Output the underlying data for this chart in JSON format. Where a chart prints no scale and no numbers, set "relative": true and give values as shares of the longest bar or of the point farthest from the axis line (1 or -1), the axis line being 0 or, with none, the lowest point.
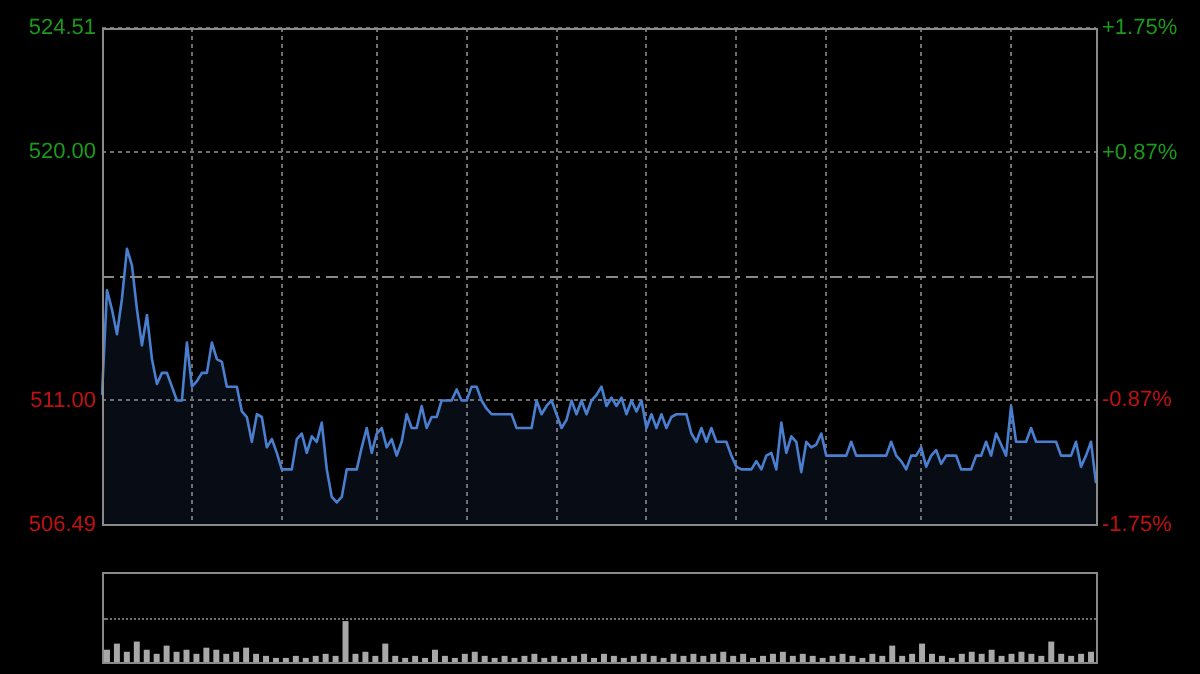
{
  "chart_data": [
    {
      "type": "area",
      "color": "#4a7fd0",
      "categories": [
        null,
        null,
        null,
        null,
        null,
        null,
        null,
        null,
        null,
        null,
        null,
        null,
        null,
        null,
        null,
        null,
        null,
        null,
        null,
        null,
        null,
        null,
        null,
        null,
        null,
        null,
        null,
        null,
        null,
        null,
        null,
        null,
        null,
        null,
        null,
        null,
        null,
        null,
        null,
        null,
        null,
        null,
        null,
        null,
        null,
        null,
        null,
        null,
        null,
        null,
        null,
        null,
        null,
        null,
        null,
        null,
        null,
        null,
        null,
        null,
        null,
        null,
        null,
        null,
        null,
        null,
        null,
        null,
        null,
        null,
        null,
        null,
        null,
        null,
        null,
        null,
        null,
        null,
        null,
        null,
        null,
        null,
        null,
        null,
        null,
        null,
        null,
        null,
        null,
        null,
        null,
        null,
        null,
        null,
        null,
        null,
        null,
        null,
        null,
        null,
        null,
        null,
        null,
        null,
        null,
        null,
        null,
        null,
        null,
        null,
        null,
        null,
        null,
        null,
        null,
        null,
        null,
        null,
        null,
        null,
        null,
        null,
        null,
        null,
        null,
        null,
        null,
        null,
        null,
        null,
        null,
        null,
        null,
        null,
        null,
        null,
        null,
        null,
        null,
        null,
        null,
        null,
        null,
        null,
        null,
        null,
        null,
        null,
        null,
        null,
        null,
        null,
        null,
        null,
        null,
        null,
        null,
        null,
        null,
        null,
        null,
        null,
        null,
        null,
        null,
        null,
        null,
        null,
        null,
        null,
        null,
        null,
        null,
        null,
        null,
        null,
        null,
        null,
        null,
        null,
        null,
        null,
        null,
        null,
        null,
        null,
        null,
        null,
        null,
        null,
        null,
        null,
        null,
        null,
        null,
        null,
        null,
        null,
        null,
        null
      ],
      "values": [
        511.2,
        515.0,
        514.3,
        513.4,
        514.7,
        516.5,
        515.9,
        514.3,
        513.0,
        514.1,
        512.5,
        511.6,
        512.0,
        512.0,
        511.5,
        511.0,
        511.0,
        513.1,
        511.5,
        511.7,
        512.0,
        512.0,
        513.1,
        512.5,
        512.4,
        511.5,
        511.5,
        511.5,
        510.6,
        510.4,
        509.5,
        510.5,
        510.4,
        509.3,
        509.6,
        509.1,
        508.5,
        508.5,
        508.5,
        509.6,
        509.8,
        509.1,
        509.7,
        509.5,
        510.2,
        508.5,
        507.5,
        507.3,
        507.5,
        508.5,
        508.5,
        508.5,
        509.3,
        510.0,
        509.1,
        509.8,
        510.0,
        509.3,
        509.6,
        509.0,
        509.5,
        510.5,
        510.0,
        510.0,
        510.8,
        510.0,
        510.4,
        510.4,
        511.0,
        511.0,
        511.0,
        511.4,
        511.0,
        511.0,
        511.5,
        511.5,
        511.0,
        510.7,
        510.5,
        510.5,
        510.5,
        510.5,
        510.5,
        510.0,
        510.0,
        510.0,
        510.0,
        511.0,
        510.5,
        510.8,
        511.0,
        510.5,
        510.0,
        510.3,
        511.0,
        510.5,
        511.0,
        510.5,
        511.0,
        511.2,
        511.5,
        510.8,
        511.1,
        510.8,
        511.1,
        510.5,
        511.0,
        510.6,
        511.0,
        510.0,
        510.5,
        510.0,
        510.5,
        510.0,
        510.4,
        510.5,
        510.5,
        510.5,
        509.8,
        509.5,
        510.0,
        509.5,
        510.0,
        509.5,
        509.5,
        509.5,
        509.0,
        508.6,
        508.5,
        508.5,
        508.5,
        508.8,
        508.5,
        509.0,
        509.1,
        508.5,
        510.2,
        509.1,
        509.7,
        509.5,
        508.4,
        509.5,
        509.3,
        509.4,
        509.8,
        509.0,
        509.0,
        509.0,
        509.0,
        509.0,
        509.5,
        509.0,
        509.0,
        509.0,
        509.0,
        509.0,
        509.0,
        509.0,
        509.5,
        509.0,
        508.8,
        508.5,
        509.0,
        509.0,
        509.3,
        508.6,
        509.0,
        509.2,
        508.7,
        509.0,
        509.0,
        509.0,
        508.5,
        508.5,
        508.5,
        509.0,
        509.0,
        509.5,
        509.0,
        509.8,
        509.4,
        509.0,
        510.8,
        509.5,
        509.5,
        509.5,
        510.0,
        509.5,
        509.5,
        509.5,
        509.5,
        509.5,
        509.0,
        509.0,
        509.0,
        509.5,
        508.6,
        509.0,
        509.5,
        508.0
      ],
      "ylim": [
        506.49,
        524.51
      ],
      "yticks": [
        {
          "value": 506.49,
          "label": "506.49"
        },
        {
          "value": 511,
          "label": "511.00"
        },
        {
          "value": 520,
          "label": "520.00"
        },
        {
          "value": 524.51,
          "label": "524.51"
        }
      ],
      "y2lim": [
        -1.75,
        1.75
      ],
      "y2ticks": [
        {
          "value": -1.75,
          "label": "-1.75%"
        },
        {
          "value": -0.87,
          "label": "-0.87%"
        },
        {
          "value": 0.87,
          "label": "+0.87%"
        },
        {
          "value": 1.75,
          "label": "+1.75%"
        }
      ],
      "ref_lines": [
        {
          "axis": "y2",
          "value": 0,
          "color": "#888888",
          "line_style": "dashed"
        }
      ],
      "grid": true,
      "tick_labels": "y"
    },
    {
      "type": "bar",
      "relative": true,
      "color": "#a8a8a8",
      "categories": [
        null,
        null,
        null,
        null,
        null,
        null,
        null,
        null,
        null,
        null,
        null,
        null,
        null,
        null,
        null,
        null,
        null,
        null,
        null,
        null,
        null,
        null,
        null,
        null,
        null,
        null,
        null,
        null,
        null,
        null,
        null,
        null,
        null,
        null,
        null,
        null,
        null,
        null,
        null,
        null,
        null,
        null,
        null,
        null,
        null,
        null,
        null,
        null,
        null,
        null,
        null,
        null,
        null,
        null,
        null,
        null,
        null,
        null,
        null,
        null,
        null,
        null,
        null,
        null,
        null,
        null,
        null,
        null,
        null,
        null,
        null,
        null,
        null,
        null,
        null,
        null,
        null,
        null,
        null,
        null,
        null,
        null,
        null,
        null,
        null,
        null,
        null,
        null,
        null,
        null,
        null,
        null,
        null,
        null,
        null,
        null,
        null,
        null,
        null,
        null
      ],
      "values": [
        0.3,
        0.45,
        0.25,
        0.5,
        0.3,
        0.2,
        0.4,
        0.25,
        0.3,
        0.2,
        0.35,
        0.3,
        0.2,
        0.25,
        0.35,
        0.2,
        0.15,
        0.1,
        0.1,
        0.15,
        0.1,
        0.15,
        0.2,
        0.15,
        1,
        0.2,
        0.25,
        0.15,
        0.45,
        0.15,
        0.1,
        0.15,
        0.1,
        0.3,
        0.15,
        0.1,
        0.2,
        0.25,
        0.15,
        0.1,
        0.15,
        0.1,
        0.15,
        0.2,
        0.1,
        0.15,
        0.1,
        0.15,
        0.2,
        0.1,
        0.2,
        0.15,
        0.1,
        0.15,
        0.2,
        0.15,
        0.1,
        0.2,
        0.15,
        0.2,
        0.15,
        0.2,
        0.25,
        0.15,
        0.2,
        0.1,
        0.15,
        0.2,
        0.25,
        0.15,
        0.2,
        0.15,
        0.1,
        0.15,
        0.2,
        0.15,
        0.1,
        0.2,
        0.15,
        0.4,
        0.15,
        0.2,
        0.45,
        0.2,
        0.15,
        0.1,
        0.2,
        0.25,
        0.2,
        0.3,
        0.15,
        0.2,
        0.25,
        0.2,
        0.15,
        0.5,
        0.2,
        0.15,
        0.2,
        0.25
      ]
    }
  ]
}
